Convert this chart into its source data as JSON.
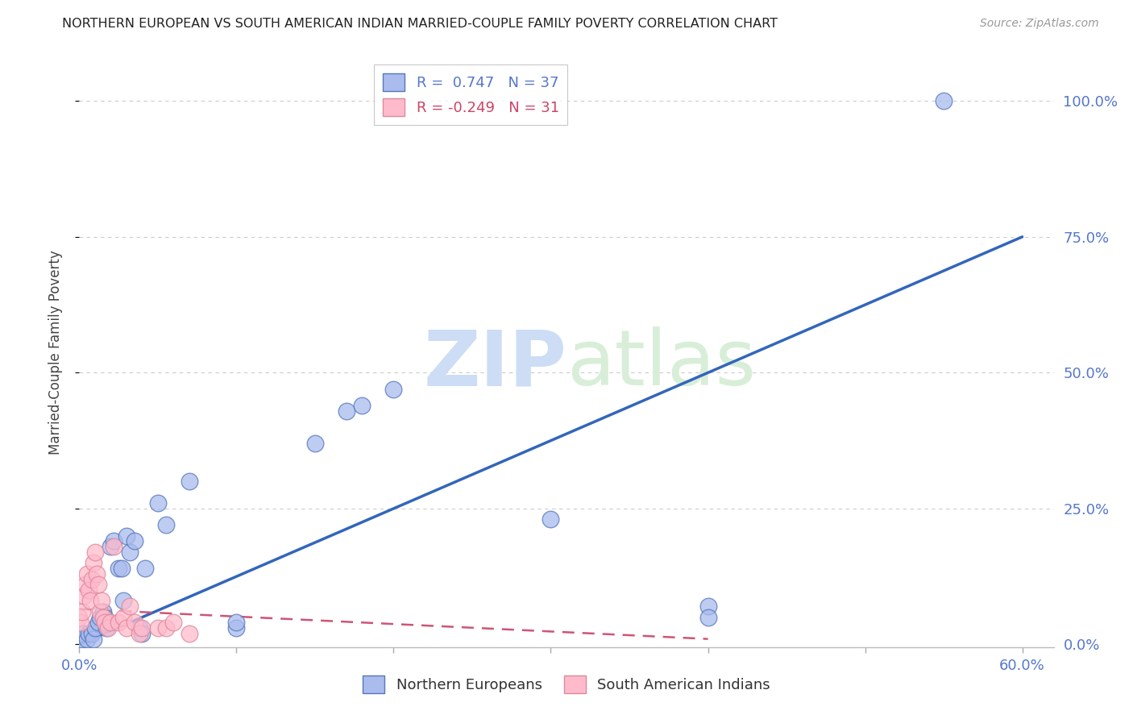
{
  "title": "NORTHERN EUROPEAN VS SOUTH AMERICAN INDIAN MARRIED-COUPLE FAMILY POVERTY CORRELATION CHART",
  "source": "Source: ZipAtlas.com",
  "ylabel": "Married-Couple Family Poverty",
  "xlim": [
    0.0,
    0.62
  ],
  "ylim": [
    -0.005,
    1.08
  ],
  "xtick_positions": [
    0.0,
    0.1,
    0.2,
    0.3,
    0.4,
    0.5,
    0.6
  ],
  "xticklabels": [
    "0.0%",
    "",
    "",
    "",
    "",
    "",
    "60.0%"
  ],
  "ytick_labels": [
    "0.0%",
    "25.0%",
    "50.0%",
    "75.0%",
    "100.0%"
  ],
  "ytick_values": [
    0.0,
    0.25,
    0.5,
    0.75,
    1.0
  ],
  "blue_R": 0.747,
  "blue_N": 37,
  "pink_R": -0.249,
  "pink_N": 31,
  "blue_fill_color": "#AABBEE",
  "blue_edge_color": "#5577BB",
  "pink_fill_color": "#FFBBCC",
  "pink_edge_color": "#DD8899",
  "blue_line_color": "#3366BB",
  "pink_line_color": "#CC5577",
  "grid_color": "#CCCCCC",
  "bg_color": "#FFFFFF",
  "watermark_zip": "ZIP",
  "watermark_atlas": "atlas",
  "blue_scatter": [
    [
      0.002,
      0.01
    ],
    [
      0.003,
      0.02
    ],
    [
      0.005,
      0.01
    ],
    [
      0.006,
      0.02
    ],
    [
      0.008,
      0.02
    ],
    [
      0.009,
      0.01
    ],
    [
      0.01,
      0.03
    ],
    [
      0.012,
      0.04
    ],
    [
      0.013,
      0.05
    ],
    [
      0.015,
      0.06
    ],
    [
      0.016,
      0.05
    ],
    [
      0.017,
      0.03
    ],
    [
      0.018,
      0.04
    ],
    [
      0.02,
      0.18
    ],
    [
      0.022,
      0.19
    ],
    [
      0.025,
      0.14
    ],
    [
      0.027,
      0.14
    ],
    [
      0.028,
      0.08
    ],
    [
      0.03,
      0.2
    ],
    [
      0.032,
      0.17
    ],
    [
      0.035,
      0.19
    ],
    [
      0.038,
      0.03
    ],
    [
      0.04,
      0.02
    ],
    [
      0.042,
      0.14
    ],
    [
      0.05,
      0.26
    ],
    [
      0.055,
      0.22
    ],
    [
      0.07,
      0.3
    ],
    [
      0.15,
      0.37
    ],
    [
      0.17,
      0.43
    ],
    [
      0.18,
      0.44
    ],
    [
      0.2,
      0.47
    ],
    [
      0.1,
      0.03
    ],
    [
      0.1,
      0.04
    ],
    [
      0.3,
      0.23
    ],
    [
      0.4,
      0.07
    ],
    [
      0.4,
      0.05
    ],
    [
      0.55,
      1.0
    ]
  ],
  "pink_scatter": [
    [
      0.0,
      0.05
    ],
    [
      0.001,
      0.04
    ],
    [
      0.002,
      0.06
    ],
    [
      0.003,
      0.09
    ],
    [
      0.004,
      0.11
    ],
    [
      0.005,
      0.13
    ],
    [
      0.006,
      0.1
    ],
    [
      0.007,
      0.08
    ],
    [
      0.008,
      0.12
    ],
    [
      0.009,
      0.15
    ],
    [
      0.01,
      0.17
    ],
    [
      0.011,
      0.13
    ],
    [
      0.012,
      0.11
    ],
    [
      0.013,
      0.06
    ],
    [
      0.014,
      0.08
    ],
    [
      0.015,
      0.05
    ],
    [
      0.016,
      0.04
    ],
    [
      0.018,
      0.03
    ],
    [
      0.02,
      0.04
    ],
    [
      0.022,
      0.18
    ],
    [
      0.025,
      0.04
    ],
    [
      0.028,
      0.05
    ],
    [
      0.03,
      0.03
    ],
    [
      0.032,
      0.07
    ],
    [
      0.035,
      0.04
    ],
    [
      0.038,
      0.02
    ],
    [
      0.04,
      0.03
    ],
    [
      0.05,
      0.03
    ],
    [
      0.055,
      0.03
    ],
    [
      0.06,
      0.04
    ],
    [
      0.07,
      0.02
    ]
  ],
  "blue_line_x": [
    0.0,
    0.6
  ],
  "blue_line_y": [
    0.0,
    0.75
  ],
  "pink_line_x": [
    0.0,
    0.4
  ],
  "pink_line_y": [
    0.065,
    0.01
  ],
  "legend_box_color": "#FFFFFF",
  "legend_border_color": "#BBBBBB"
}
